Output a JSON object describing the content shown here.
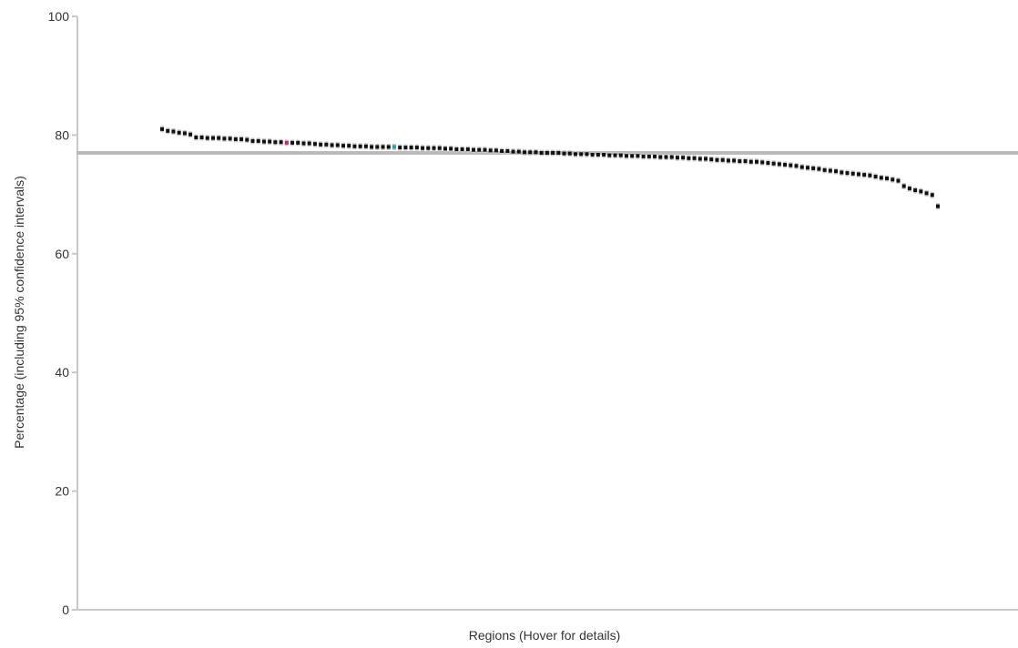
{
  "chart_data": {
    "type": "scatter",
    "title": "",
    "xlabel": "Regions (Hover for details)",
    "ylabel": "Percentage (including 95% confidence intervals)",
    "ylim": [
      0,
      100
    ],
    "yticks": [
      0,
      20,
      40,
      60,
      80,
      100
    ],
    "grid": false,
    "legend": "none",
    "reference_line": {
      "value": 77,
      "color": "#bbbbbb"
    },
    "colors": {
      "point": "#111111",
      "ci": "#c8c8c8",
      "axis": "#c8c8c8",
      "highlight_magenta": "#d0216b",
      "highlight_cyan": "#2aa0b4"
    },
    "highlights": [
      {
        "index": 22,
        "color": "#d0216b"
      },
      {
        "index": 41,
        "color": "#2aa0b4"
      }
    ],
    "series": [
      {
        "values": [
          81.0,
          80.7,
          80.6,
          80.4,
          80.3,
          80.1,
          79.6,
          79.6,
          79.5,
          79.5,
          79.5,
          79.4,
          79.4,
          79.3,
          79.3,
          79.2,
          79.0,
          79.0,
          78.9,
          78.9,
          78.8,
          78.8,
          78.7,
          78.7,
          78.7,
          78.6,
          78.6,
          78.5,
          78.4,
          78.4,
          78.3,
          78.3,
          78.2,
          78.2,
          78.1,
          78.1,
          78.1,
          78.0,
          78.0,
          78.0,
          78.0,
          78.0,
          77.9,
          77.9,
          77.9,
          77.9,
          77.8,
          77.8,
          77.8,
          77.8,
          77.7,
          77.7,
          77.6,
          77.6,
          77.6,
          77.5,
          77.5,
          77.5,
          77.4,
          77.4,
          77.3,
          77.3,
          77.2,
          77.2,
          77.1,
          77.1,
          77.1,
          77.0,
          77.0,
          77.0,
          77.0,
          76.9,
          76.9,
          76.8,
          76.8,
          76.8,
          76.7,
          76.7,
          76.7,
          76.6,
          76.6,
          76.6,
          76.5,
          76.5,
          76.5,
          76.4,
          76.4,
          76.4,
          76.3,
          76.3,
          76.3,
          76.2,
          76.2,
          76.1,
          76.1,
          76.0,
          76.0,
          75.9,
          75.8,
          75.8,
          75.7,
          75.7,
          75.6,
          75.6,
          75.5,
          75.5,
          75.4,
          75.3,
          75.2,
          75.1,
          75.0,
          74.9,
          74.8,
          74.6,
          74.5,
          74.4,
          74.3,
          74.1,
          74.0,
          73.9,
          73.7,
          73.6,
          73.5,
          73.4,
          73.3,
          73.2,
          73.0,
          72.8,
          72.7,
          72.5,
          72.3,
          71.4,
          71.0,
          70.7,
          70.5,
          70.2,
          69.9,
          68.0
        ]
      }
    ]
  }
}
